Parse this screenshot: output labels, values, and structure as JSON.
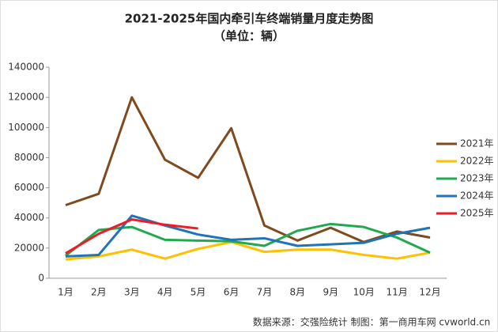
{
  "chart_data": {
    "type": "line",
    "title": "2021-2025年国内牵引车终端销量月度走势图",
    "subtitle": "（单位：辆）",
    "source": "数据来源：交强险统计   制图：第一商用车网 cvworld.cn",
    "categories": [
      "1月",
      "2月",
      "3月",
      "4月",
      "5月",
      "6月",
      "7月",
      "8月",
      "9月",
      "10月",
      "11月",
      "12月"
    ],
    "series": [
      {
        "name": "2021年",
        "color": "#7f4a1e",
        "values": [
          48500,
          56000,
          120000,
          78600,
          66600,
          99500,
          35000,
          25000,
          33500,
          24000,
          31000,
          27000
        ]
      },
      {
        "name": "2022年",
        "color": "#ffc000",
        "values": [
          12500,
          14500,
          19000,
          13000,
          19500,
          24000,
          17500,
          19000,
          19000,
          15500,
          13000,
          17000
        ]
      },
      {
        "name": "2023年",
        "color": "#1faa4f",
        "values": [
          15000,
          32000,
          34000,
          25500,
          25000,
          24500,
          21500,
          31500,
          36000,
          34000,
          27000,
          17000
        ]
      },
      {
        "name": "2024年",
        "color": "#1f74b8",
        "values": [
          14500,
          15500,
          41500,
          35000,
          29000,
          25500,
          26500,
          21500,
          22500,
          23500,
          29500,
          33500
        ]
      },
      {
        "name": "2025年",
        "color": "#ee1c25",
        "values": [
          16500,
          29500,
          39000,
          35500,
          33000,
          null,
          null,
          null,
          null,
          null,
          null,
          null
        ]
      }
    ],
    "ylim": [
      0,
      140000
    ],
    "yticks": [
      0,
      20000,
      40000,
      60000,
      80000,
      100000,
      120000,
      140000
    ],
    "grid": false,
    "legend": "right"
  }
}
